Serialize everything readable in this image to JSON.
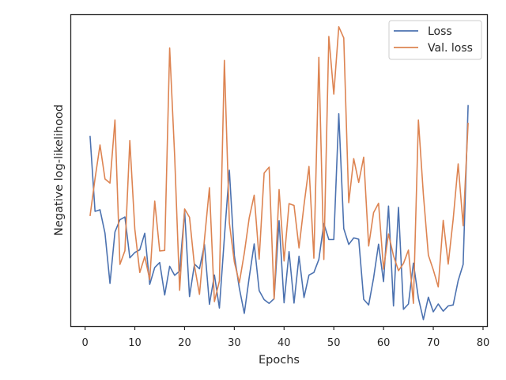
{
  "chart_data": {
    "type": "line",
    "title": "",
    "xlabel": "Epochs",
    "ylabel": "Negative log-likelihood",
    "xlim": [
      -2.8,
      80.8
    ],
    "ylim": [
      0,
      1
    ],
    "xticks": [
      0,
      10,
      20,
      30,
      40,
      50,
      60,
      70,
      80
    ],
    "xtick_labels": [
      "0",
      "10",
      "20",
      "30",
      "40",
      "50",
      "60",
      "70",
      "80"
    ],
    "yticks_shown": false,
    "grid": false,
    "legend": "top-right",
    "x": [
      1,
      2,
      3,
      4,
      5,
      6,
      7,
      8,
      9,
      10,
      11,
      12,
      13,
      14,
      15,
      16,
      17,
      18,
      19,
      20,
      21,
      22,
      23,
      24,
      25,
      26,
      27,
      28,
      29,
      30,
      31,
      32,
      33,
      34,
      35,
      36,
      37,
      38,
      39,
      40,
      41,
      42,
      43,
      44,
      45,
      46,
      47,
      48,
      49,
      50,
      51,
      52,
      53,
      54,
      55,
      56,
      57,
      58,
      59,
      60,
      61,
      62,
      63,
      64,
      65,
      66,
      67,
      68,
      69,
      70,
      71,
      72,
      73,
      74,
      75,
      76,
      77
    ],
    "series": [
      {
        "name": "Loss",
        "color": "#4c72b0",
        "values": [
          0.61,
          0.368,
          0.373,
          0.298,
          0.137,
          0.302,
          0.341,
          0.35,
          0.219,
          0.236,
          0.245,
          0.298,
          0.134,
          0.188,
          0.204,
          0.1,
          0.192,
          0.163,
          0.177,
          0.37,
          0.095,
          0.199,
          0.184,
          0.262,
          0.07,
          0.164,
          0.058,
          0.284,
          0.5,
          0.227,
          0.122,
          0.041,
          0.156,
          0.264,
          0.114,
          0.085,
          0.073,
          0.088,
          0.338,
          0.075,
          0.239,
          0.074,
          0.224,
          0.092,
          0.164,
          0.172,
          0.214,
          0.329,
          0.278,
          0.278,
          0.681,
          0.313,
          0.262,
          0.283,
          0.279,
          0.086,
          0.068,
          0.154,
          0.263,
          0.143,
          0.385,
          0.065,
          0.381,
          0.054,
          0.071,
          0.202,
          0.09,
          0.021,
          0.093,
          0.046,
          0.071,
          0.048,
          0.065,
          0.068,
          0.146,
          0.198,
          0.709
        ]
      },
      {
        "name": "Val. loss",
        "color": "#dd8452",
        "values": [
          0.353,
          0.473,
          0.581,
          0.472,
          0.459,
          0.661,
          0.198,
          0.242,
          0.595,
          0.312,
          0.172,
          0.223,
          0.149,
          0.401,
          0.241,
          0.243,
          0.892,
          0.546,
          0.115,
          0.376,
          0.349,
          0.193,
          0.102,
          0.278,
          0.444,
          0.079,
          0.145,
          0.852,
          0.331,
          0.206,
          0.139,
          0.234,
          0.347,
          0.42,
          0.215,
          0.491,
          0.51,
          0.087,
          0.438,
          0.209,
          0.393,
          0.387,
          0.251,
          0.388,
          0.512,
          0.218,
          0.862,
          0.214,
          0.929,
          0.744,
          0.96,
          0.924,
          0.396,
          0.537,
          0.461,
          0.542,
          0.257,
          0.364,
          0.394,
          0.183,
          0.296,
          0.226,
          0.178,
          0.201,
          0.244,
          0.073,
          0.661,
          0.422,
          0.228,
          0.181,
          0.126,
          0.339,
          0.199,
          0.343,
          0.52,
          0.322,
          0.652
        ]
      }
    ]
  }
}
